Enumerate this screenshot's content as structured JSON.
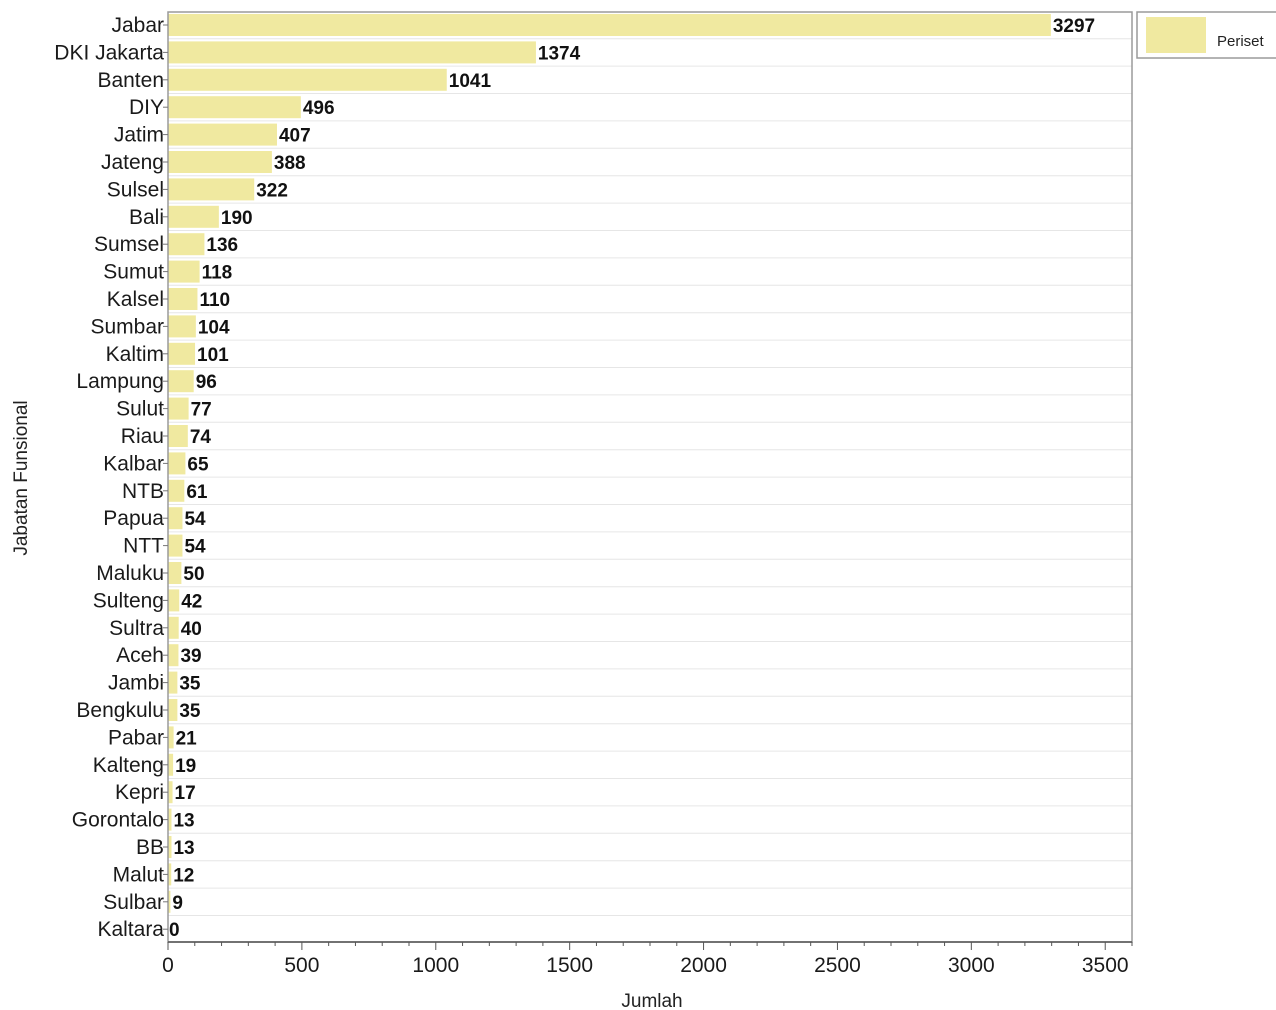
{
  "chart_data": {
    "type": "bar",
    "orientation": "horizontal",
    "xlabel": "Jumlah",
    "ylabel": "Jabatan Funsional",
    "xlim": [
      0,
      3600
    ],
    "xticks": [
      0,
      500,
      1000,
      1500,
      2000,
      2500,
      3000,
      3500
    ],
    "legend_position": "top-right",
    "grid": "horizontal",
    "bar_color": "#f0e9a0",
    "categories": [
      "Jabar",
      "DKI Jakarta",
      "Banten",
      "DIY",
      "Jatim",
      "Jateng",
      "Sulsel",
      "Bali",
      "Sumsel",
      "Sumut",
      "Kalsel",
      "Sumbar",
      "Kaltim",
      "Lampung",
      "Sulut",
      "Riau",
      "Kalbar",
      "NTB",
      "Papua",
      "NTT",
      "Maluku",
      "Sulteng",
      "Sultra",
      "Aceh",
      "Jambi",
      "Bengkulu",
      "Pabar",
      "Kalteng",
      "Kepri",
      "Gorontalo",
      "BB",
      "Malut",
      "Sulbar",
      "Kaltara"
    ],
    "series": [
      {
        "name": "Periset",
        "values": [
          3297,
          1374,
          1041,
          496,
          407,
          388,
          322,
          190,
          136,
          118,
          110,
          104,
          101,
          96,
          77,
          74,
          65,
          61,
          54,
          54,
          50,
          42,
          40,
          39,
          35,
          35,
          21,
          19,
          17,
          13,
          13,
          12,
          9,
          0
        ]
      }
    ]
  }
}
